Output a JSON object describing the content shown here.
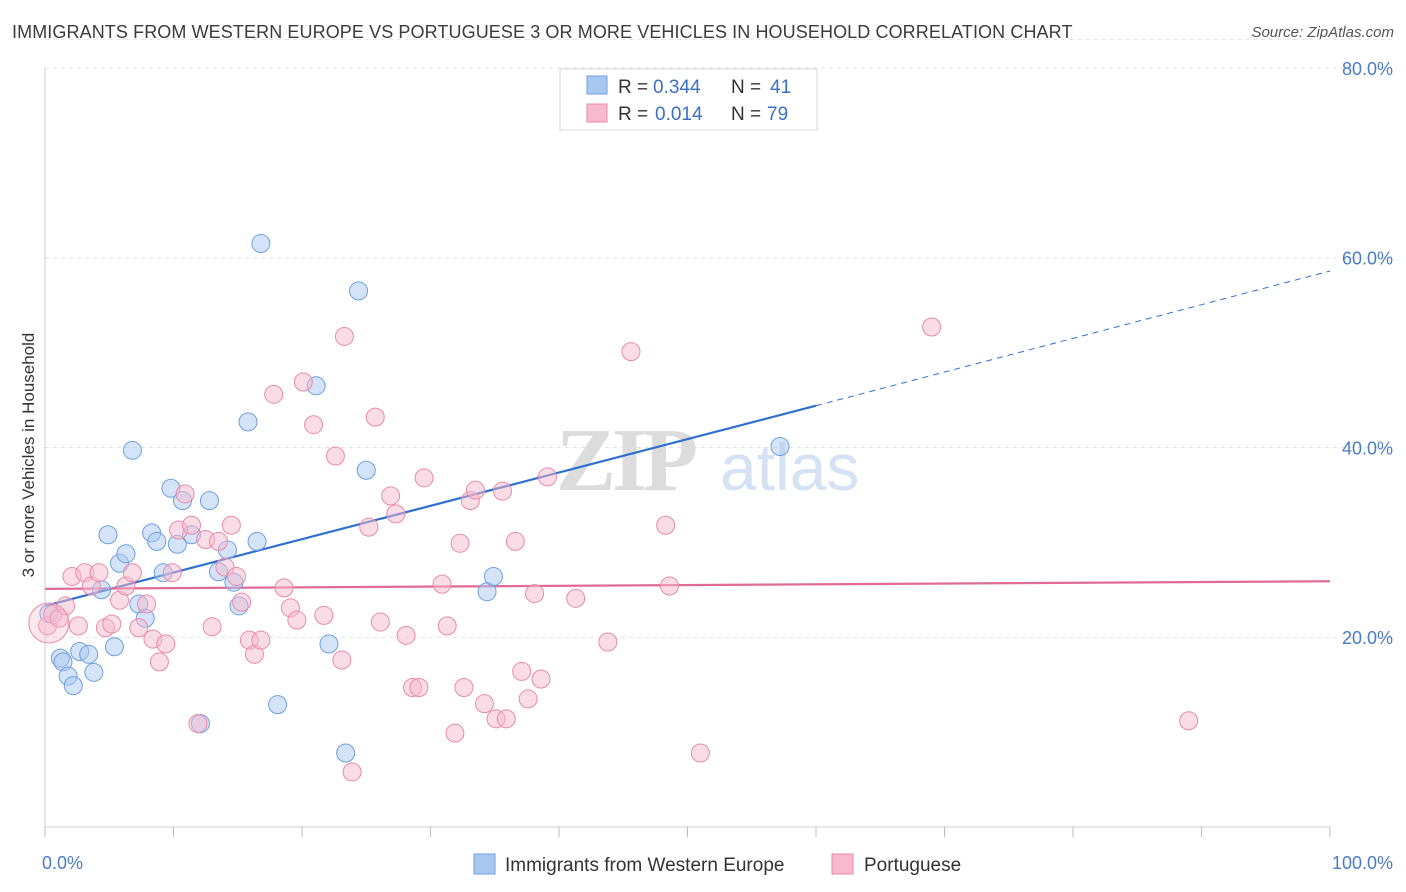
{
  "title": "IMMIGRANTS FROM WESTERN EUROPE VS PORTUGUESE 3 OR MORE VEHICLES IN HOUSEHOLD CORRELATION CHART",
  "source": "Source: ZipAtlas.com",
  "watermark": {
    "zip": "ZIP",
    "atlas": "atlas"
  },
  "legend": {
    "r_label": "R =",
    "n_label": "N =",
    "rows": [
      {
        "r": "0.344",
        "n": "41",
        "color": "#a9c8f0"
      },
      {
        "r": "0.014",
        "n": "79",
        "color": "#f6b9cd"
      }
    ]
  },
  "chart_data": {
    "type": "scatter",
    "ylabel": "3 or more Vehicles in Household",
    "xlim": [
      0,
      100
    ],
    "ylim": [
      0,
      84
    ],
    "x_tick_labels": [
      "0.0%",
      "100.0%"
    ],
    "y_ticks": [
      20,
      40,
      60,
      80
    ],
    "y_tick_labels": [
      "20.0%",
      "40.0%",
      "60.0%",
      "80.0%"
    ],
    "grid": "horizontal dashed",
    "legend_position": "top-center",
    "series": [
      {
        "name": "Immigrants from Western Europe",
        "color": "#a9c8f0",
        "stroke": "#6f9fe0",
        "trend": {
          "x0": 0,
          "y0": 23.3,
          "x1": 60,
          "y1": 44.4,
          "dash_to": 100,
          "dash_y": 58.6,
          "color": "#2f6fcf"
        },
        "points": [
          [
            0.3,
            22.5
          ],
          [
            1.2,
            17.8
          ],
          [
            1.4,
            17.4
          ],
          [
            1.8,
            15.9
          ],
          [
            2.2,
            14.9
          ],
          [
            2.7,
            18.5
          ],
          [
            3.4,
            18.2
          ],
          [
            3.8,
            16.3
          ],
          [
            4.4,
            25.0
          ],
          [
            4.9,
            30.8
          ],
          [
            5.4,
            19.0
          ],
          [
            5.8,
            27.8
          ],
          [
            6.3,
            28.8
          ],
          [
            6.8,
            39.7
          ],
          [
            7.3,
            23.5
          ],
          [
            7.8,
            22.0
          ],
          [
            8.3,
            31.0
          ],
          [
            8.7,
            30.1
          ],
          [
            9.2,
            26.8
          ],
          [
            9.8,
            35.7
          ],
          [
            10.3,
            29.8
          ],
          [
            10.7,
            34.4
          ],
          [
            11.4,
            30.8
          ],
          [
            12.1,
            10.9
          ],
          [
            12.8,
            34.4
          ],
          [
            13.5,
            26.9
          ],
          [
            14.2,
            29.2
          ],
          [
            14.7,
            25.8
          ],
          [
            15.1,
            23.3
          ],
          [
            15.8,
            42.7
          ],
          [
            16.5,
            30.1
          ],
          [
            16.8,
            61.5
          ],
          [
            18.1,
            12.9
          ],
          [
            21.1,
            46.5
          ],
          [
            22.1,
            19.3
          ],
          [
            23.4,
            7.8
          ],
          [
            24.4,
            56.5
          ],
          [
            25.0,
            37.6
          ],
          [
            34.4,
            24.8
          ],
          [
            34.9,
            26.4
          ],
          [
            57.2,
            40.1
          ]
        ]
      },
      {
        "name": "Portuguese",
        "color": "#f6b9cd",
        "stroke": "#e98aab",
        "trend": {
          "x0": 0,
          "y0": 25.1,
          "x1": 100,
          "y1": 25.9,
          "color": "#e06b96"
        },
        "points": [
          [
            0.2,
            21.2
          ],
          [
            0.6,
            22.4
          ],
          [
            1.1,
            22.0
          ],
          [
            1.6,
            23.3
          ],
          [
            2.1,
            26.4
          ],
          [
            2.6,
            21.2
          ],
          [
            3.1,
            26.8
          ],
          [
            3.6,
            25.4
          ],
          [
            4.2,
            26.8
          ],
          [
            4.7,
            21.0
          ],
          [
            5.2,
            21.4
          ],
          [
            5.8,
            23.9
          ],
          [
            6.3,
            25.4
          ],
          [
            6.8,
            26.8
          ],
          [
            7.3,
            21.0
          ],
          [
            7.9,
            23.5
          ],
          [
            8.4,
            19.8
          ],
          [
            8.9,
            17.4
          ],
          [
            9.4,
            19.3
          ],
          [
            9.9,
            26.8
          ],
          [
            10.4,
            31.3
          ],
          [
            10.9,
            35.1
          ],
          [
            11.4,
            31.8
          ],
          [
            11.9,
            10.9
          ],
          [
            12.5,
            30.3
          ],
          [
            13.0,
            21.1
          ],
          [
            13.5,
            30.1
          ],
          [
            14.0,
            27.4
          ],
          [
            14.5,
            31.8
          ],
          [
            14.9,
            26.4
          ],
          [
            15.3,
            23.7
          ],
          [
            15.9,
            19.7
          ],
          [
            16.3,
            18.2
          ],
          [
            16.8,
            19.7
          ],
          [
            17.8,
            45.6
          ],
          [
            18.6,
            25.2
          ],
          [
            19.1,
            23.1
          ],
          [
            19.6,
            21.8
          ],
          [
            20.1,
            46.9
          ],
          [
            20.9,
            42.4
          ],
          [
            21.7,
            22.3
          ],
          [
            22.6,
            39.1
          ],
          [
            23.1,
            17.6
          ],
          [
            23.3,
            51.7
          ],
          [
            23.9,
            5.8
          ],
          [
            25.2,
            31.6
          ],
          [
            25.7,
            43.2
          ],
          [
            26.1,
            21.6
          ],
          [
            26.9,
            34.9
          ],
          [
            27.3,
            33.0
          ],
          [
            28.1,
            20.2
          ],
          [
            28.6,
            14.7
          ],
          [
            29.1,
            14.7
          ],
          [
            29.5,
            36.8
          ],
          [
            30.9,
            25.6
          ],
          [
            31.3,
            21.2
          ],
          [
            31.9,
            9.9
          ],
          [
            32.3,
            29.9
          ],
          [
            32.6,
            14.7
          ],
          [
            33.1,
            34.4
          ],
          [
            33.5,
            35.5
          ],
          [
            34.2,
            13.0
          ],
          [
            35.1,
            11.4
          ],
          [
            35.6,
            35.4
          ],
          [
            35.9,
            11.4
          ],
          [
            36.6,
            30.1
          ],
          [
            37.1,
            16.4
          ],
          [
            37.6,
            13.5
          ],
          [
            38.1,
            24.6
          ],
          [
            38.6,
            15.6
          ],
          [
            39.1,
            36.9
          ],
          [
            41.3,
            24.1
          ],
          [
            43.8,
            19.5
          ],
          [
            45.6,
            50.1
          ],
          [
            48.3,
            31.8
          ],
          [
            48.6,
            25.4
          ],
          [
            51.0,
            7.8
          ],
          [
            69.0,
            52.7
          ],
          [
            89.0,
            11.2
          ]
        ]
      }
    ]
  }
}
